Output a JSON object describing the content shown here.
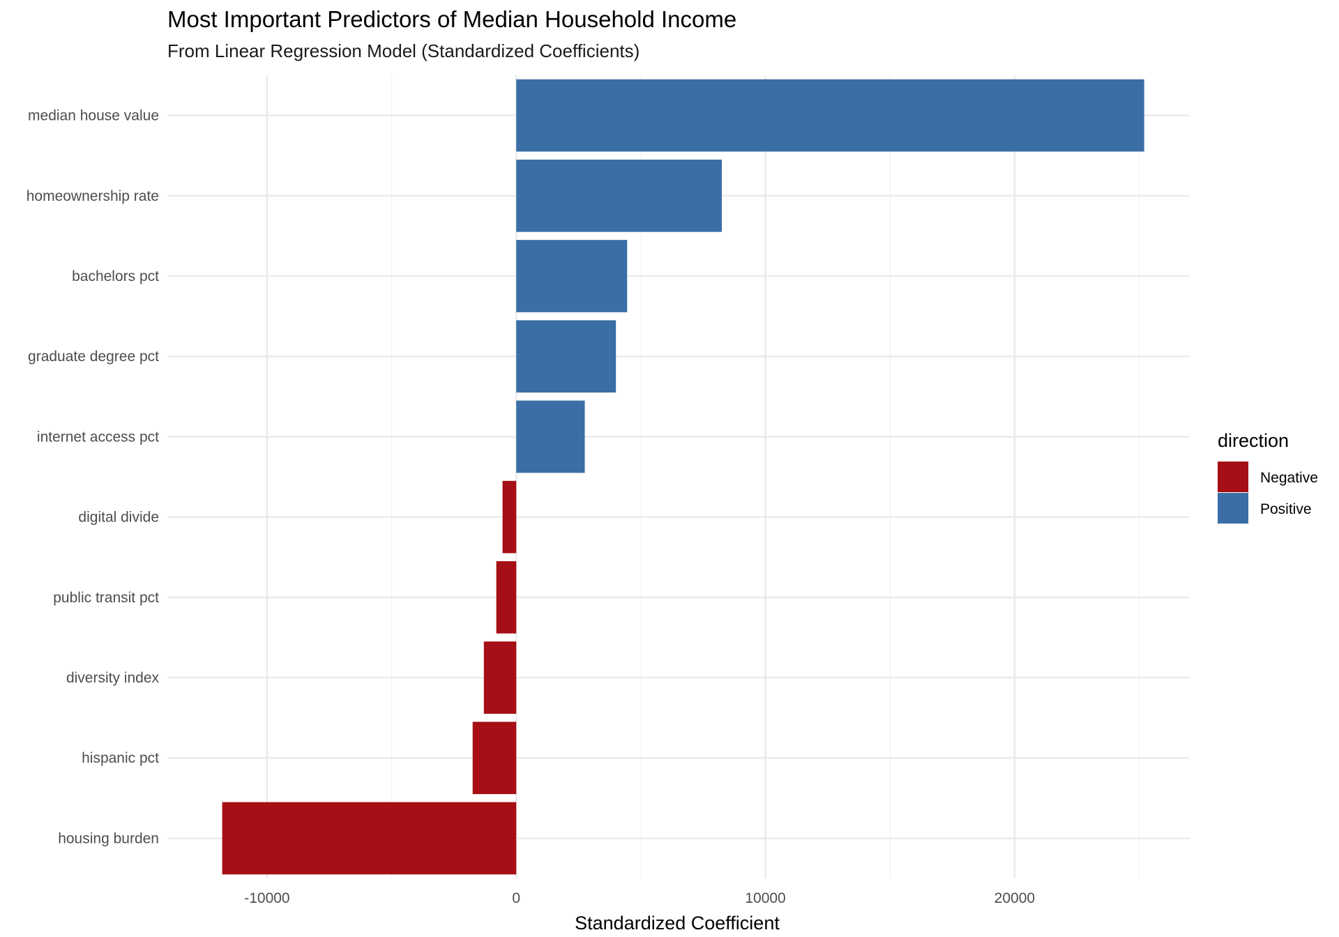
{
  "chart_data": {
    "type": "bar",
    "orientation": "horizontal",
    "title": "Most Important Predictors of Median Household Income",
    "subtitle": "From Linear Regression Model (Standardized Coefficients)",
    "xlabel": "Standardized Coefficient",
    "ylabel": "",
    "xlim": [
      -14000,
      27000
    ],
    "xticks": [
      -10000,
      0,
      10000,
      20000
    ],
    "xtick_labels": [
      "-10000",
      "0",
      "10000",
      "20000"
    ],
    "grid": true,
    "legend": {
      "title": "direction",
      "placement": "right",
      "entries": [
        {
          "label": "Negative",
          "color": "#A50F15"
        },
        {
          "label": "Positive",
          "color": "#3A6EA5"
        }
      ]
    },
    "categories": [
      "median house value",
      "homeownership rate",
      "bachelors pct",
      "graduate degree pct",
      "internet access pct",
      "digital divide",
      "public transit pct",
      "diversity index",
      "hispanic pct",
      "housing burden"
    ],
    "values": [
      25200,
      8250,
      4450,
      4000,
      2750,
      -550,
      -800,
      -1300,
      -1750,
      -11800
    ],
    "directions": [
      "Positive",
      "Positive",
      "Positive",
      "Positive",
      "Positive",
      "Negative",
      "Negative",
      "Negative",
      "Negative",
      "Negative"
    ]
  }
}
